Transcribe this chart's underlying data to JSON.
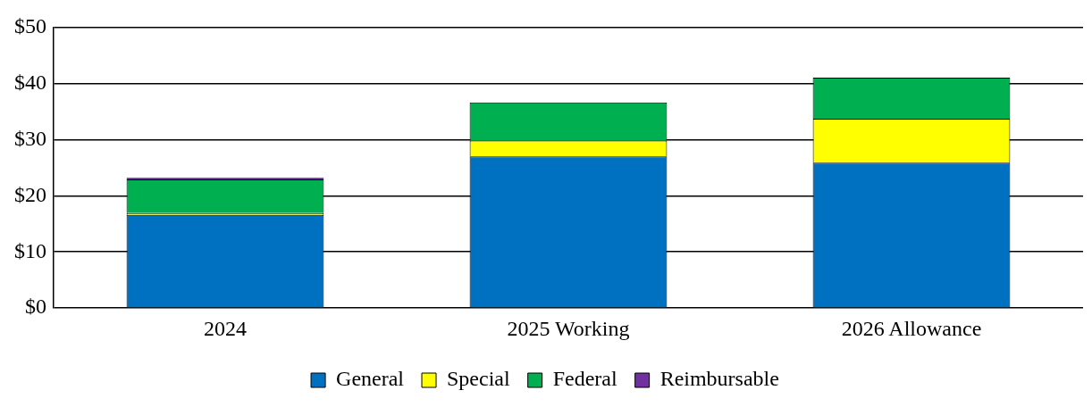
{
  "chart_data": {
    "type": "bar",
    "stacked": true,
    "categories": [
      "2024",
      "2025 Working",
      "2026 Allowance"
    ],
    "series": [
      {
        "name": "General",
        "color": "#0070c0",
        "values": [
          16.6,
          27.0,
          25.9
        ]
      },
      {
        "name": "Special",
        "color": "#ffff00",
        "values": [
          0.3,
          2.8,
          7.8
        ]
      },
      {
        "name": "Federal",
        "color": "#00b050",
        "values": [
          6.0,
          6.8,
          7.3
        ]
      },
      {
        "name": "Reimbursable",
        "color": "#7030a0",
        "values": [
          0.3,
          0,
          0
        ]
      }
    ],
    "ylim": [
      0,
      50
    ],
    "yticks": [
      {
        "value": 0,
        "label": "$0"
      },
      {
        "value": 10,
        "label": "$10"
      },
      {
        "value": 20,
        "label": "$20"
      },
      {
        "value": 30,
        "label": "$30"
      },
      {
        "value": 40,
        "label": "$40"
      },
      {
        "value": 50,
        "label": "$50"
      }
    ],
    "grid": "y",
    "legend": "bottom"
  }
}
